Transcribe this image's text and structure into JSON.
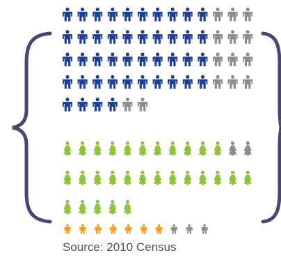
{
  "source": "Source: 2010 Census",
  "colors": {
    "male_filled": "#1f3e96",
    "female_filled": "#8fc43a",
    "child_filled": "#f39b1c",
    "empty": "#8c8c8c",
    "brace": "#4a4674"
  },
  "icons": {
    "male": "man-icon",
    "female": "woman-icon",
    "child": "child-icon"
  },
  "chart_data": {
    "type": "pictograph",
    "title": "",
    "groups": [
      {
        "icon": "man-icon",
        "color": "#1f3e96",
        "filled_rows": [
          10,
          10,
          10,
          10,
          4
        ],
        "total_rows": [
          13,
          13,
          13,
          13,
          6
        ]
      },
      {
        "icon": "woman-icon",
        "color": "#8fc43a",
        "filled_rows": [
          11,
          13,
          5
        ],
        "total_rows": [
          13,
          13,
          5
        ]
      },
      {
        "icon": "child-icon",
        "color": "#f39b1c",
        "filled_rows": [
          7
        ],
        "total_rows": [
          10
        ]
      }
    ]
  }
}
